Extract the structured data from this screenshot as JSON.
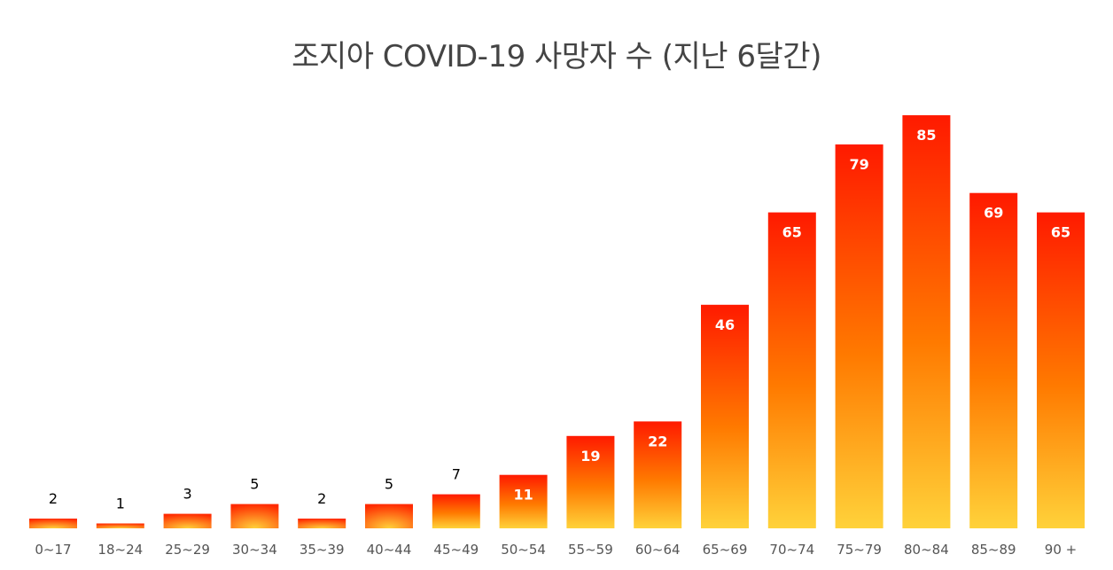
{
  "chart_data": {
    "type": "bar",
    "title": "조지아 COVID-19 사망자 수 (지난 6달간)",
    "categories": [
      "0~17",
      "18~24",
      "25~29",
      "30~34",
      "35~39",
      "40~44",
      "45~49",
      "50~54",
      "55~59",
      "60~64",
      "65~69",
      "70~74",
      "75~79",
      "80~84",
      "85~89",
      "90 +"
    ],
    "values": [
      2,
      1,
      3,
      5,
      2,
      5,
      7,
      11,
      19,
      22,
      46,
      65,
      79,
      85,
      69,
      65
    ],
    "xlabel": "",
    "ylabel": "",
    "ylim": [
      0,
      85
    ],
    "grid": false,
    "legend": "none",
    "data_labels": true,
    "colors": {
      "bar_top": "#ff1a00",
      "bar_mid": "#ff7a00",
      "bar_bottom": "#ffd23a",
      "title": "#444444",
      "tick": "#555555"
    }
  }
}
